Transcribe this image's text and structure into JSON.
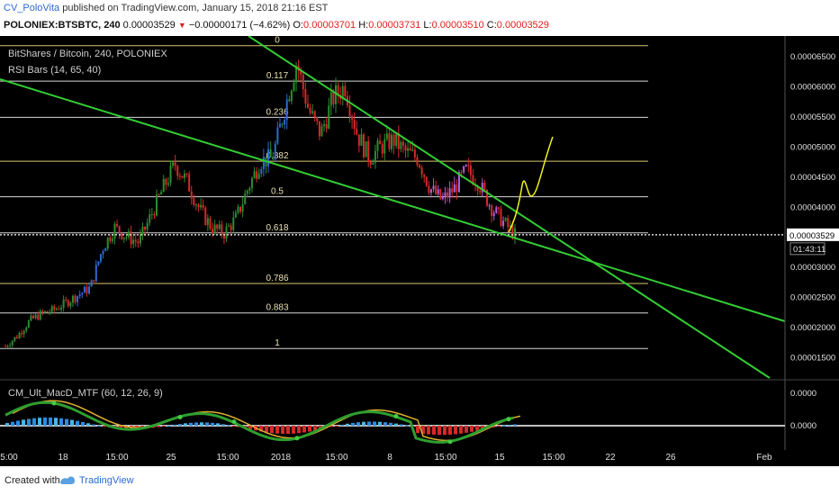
{
  "header": {
    "author": "CV_PoloVita",
    "published_text": "published on TradingView.com, January 15, 2018 21:16 EST",
    "symbol_line": "POLONIEX:BTSBTC, 240",
    "last": "0.00003529",
    "change": "−0.00000171 (−4.62%)",
    "o_label": "O:",
    "o": "0.00003701",
    "h_label": "H:",
    "h": "0.00003731",
    "l_label": "L:",
    "l": "0.00003510",
    "c_label": "C:",
    "c": "0.00003529"
  },
  "legend": {
    "title": "BitShares / Bitcoin, 240, POLONIEX",
    "indicator": "RSI Bars (14, 65, 40)",
    "macd": "CM_Ult_MacD_MTF (60, 12, 26, 9)"
  },
  "colors": {
    "background": "#000000",
    "up": "#2e8b2e",
    "down": "#d42a2a",
    "rsi_overbought": "#2e6ad3",
    "rsi_oversold": "#b060d8",
    "fib": "#d8c870",
    "trendline": "#33cc33",
    "projection": "#f0f020",
    "price_line": "#ffffff"
  },
  "chart_data": {
    "type": "candlestick",
    "y_axis_ticks": [
      "0.00006500",
      "0.00006000",
      "0.00005500",
      "0.00005000",
      "0.00004500",
      "0.00004000",
      "0.00003000",
      "0.00002500",
      "0.00002000",
      "0.00001500"
    ],
    "ylim": [
      1.15e-05,
      6.83e-05
    ],
    "x_axis_ticks": [
      "5:00",
      "18",
      "15:00",
      "25",
      "15:00",
      "2018",
      "15:00",
      "8",
      "15:00",
      "15",
      "15:00",
      "22",
      "26",
      "Feb"
    ],
    "last_price_label": "0.00003529",
    "countdown": "01:43:11",
    "fib_levels": [
      {
        "label": "0",
        "value": 6.67e-05
      },
      {
        "label": "0.117",
        "value": 6.08e-05
      },
      {
        "label": "0.236",
        "value": 5.48e-05
      },
      {
        "label": "0.382",
        "value": 4.75e-05
      },
      {
        "label": "0.5",
        "value": 4.16e-05
      },
      {
        "label": "0.618",
        "value": 3.56e-05
      },
      {
        "label": "0.786",
        "value": 2.72e-05
      },
      {
        "label": "0.883",
        "value": 2.23e-05
      },
      {
        "label": "1",
        "value": 1.64e-05
      }
    ],
    "close_path": [
      1.68e-05,
      1.85e-05,
      2.1e-05,
      2.22e-05,
      2.28e-05,
      2.4e-05,
      2.53e-05,
      2.65e-05,
      3.3e-05,
      3.65e-05,
      3.5e-05,
      3.4e-05,
      3.85e-05,
      4.3e-05,
      4.7e-05,
      4.4e-05,
      3.95e-05,
      3.65e-05,
      3.55e-05,
      3.8e-05,
      4.3e-05,
      4.75e-05,
      4.8e-05,
      5.6e-05,
      6.4e-05,
      5.6e-05,
      5.2e-05,
      5.8e-05,
      6e-05,
      5.2e-05,
      4.8e-05,
      5e-05,
      5.1e-05,
      4.9e-05,
      4.8e-05,
      4.3e-05,
      4.1e-05,
      4.3e-05,
      4.6e-05,
      4.4e-05,
      4e-05,
      3.75e-05,
      3.53e-05
    ],
    "macd_axis": [
      "0.0000",
      "0.0000"
    ]
  },
  "footer": {
    "created": "Created with",
    "brand": "TradingView"
  }
}
